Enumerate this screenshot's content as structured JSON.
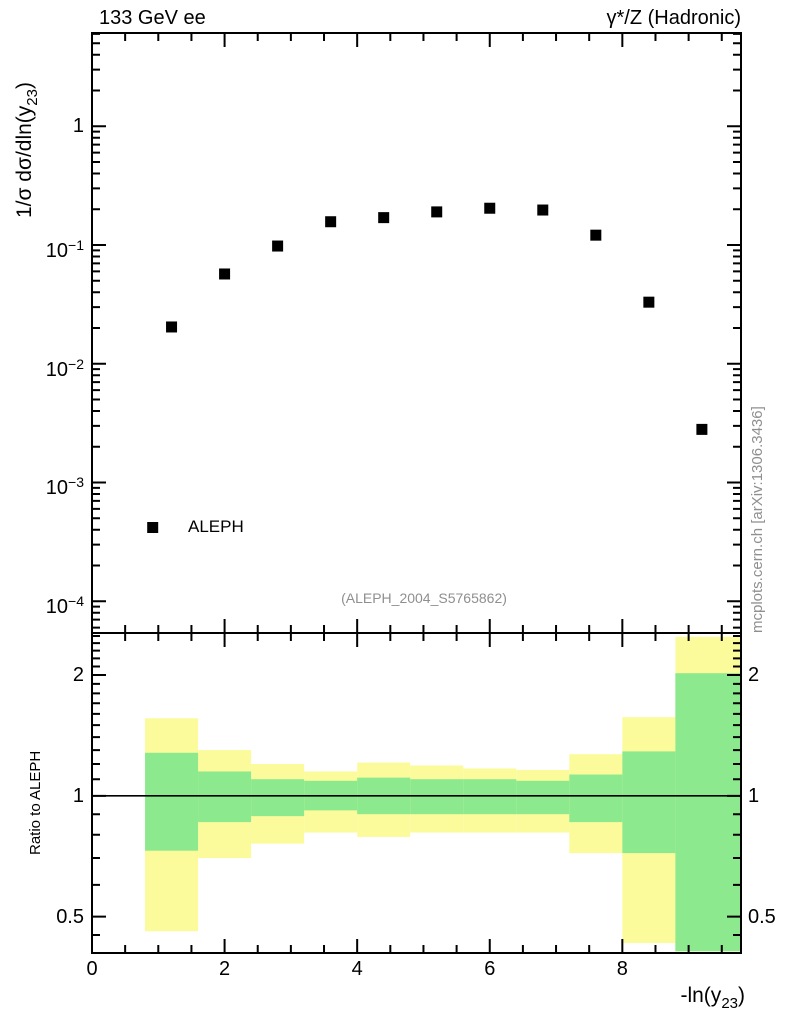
{
  "header": {
    "left_title": "133 GeV ee",
    "right_title": "γ*/Z (Hadronic)"
  },
  "side_note": "mcplots.cern.ch [arXiv:1306.3436]",
  "watermark": "(ALEPH_2004_S5765862)",
  "legend": {
    "label": "ALEPH",
    "marker": "filled-square-icon",
    "marker_color": "#000000"
  },
  "axes": {
    "x_title": {
      "pre": "-ln(y",
      "sub": "23",
      "post": ")"
    },
    "y_title": {
      "pre": "1/σ  dσ/dln(y",
      "sub": "23",
      "post": ")"
    },
    "ratio_title": "Ratio to ALEPH"
  },
  "colors": {
    "frame": "#000000",
    "marker": "#000000",
    "band_yellow": "#FBFB9B",
    "band_green": "#8DE98D",
    "gray_text": "#8f8f8f"
  },
  "chart_data": [
    {
      "type": "scatter",
      "panel": "main",
      "yscale": "log",
      "xlim": [
        0,
        9.79
      ],
      "ylim": [
        5.4e-05,
        6.1
      ],
      "grid": false,
      "x_major_ticks": [
        0,
        2,
        4,
        6,
        8
      ],
      "x_minor_step": 0.5,
      "y_tick_labels": [
        {
          "v": 1,
          "text": "1"
        },
        {
          "v": 0.1,
          "base": "10",
          "exp": "−1"
        },
        {
          "v": 0.01,
          "base": "10",
          "exp": "−2"
        },
        {
          "v": 0.001,
          "base": "10",
          "exp": "−3"
        },
        {
          "v": 0.0001,
          "base": "10",
          "exp": "−4"
        }
      ],
      "series": [
        {
          "name": "ALEPH",
          "marker": "square",
          "color": "#000000",
          "x": [
            1.2,
            2.0,
            2.8,
            3.6,
            4.4,
            5.2,
            6.0,
            6.8,
            7.6,
            8.4,
            9.2
          ],
          "y": [
            0.0204,
            0.057,
            0.098,
            0.157,
            0.17,
            0.19,
            0.204,
            0.197,
            0.121,
            0.033,
            0.0028
          ]
        }
      ]
    },
    {
      "type": "ratio-bands",
      "panel": "ratio",
      "yscale": "log",
      "xlim": [
        0,
        9.79
      ],
      "ylim": [
        0.406,
        2.544
      ],
      "ref_line": 1,
      "x_major_ticks": [
        0,
        2,
        4,
        6,
        8
      ],
      "x_minor_step": 0.5,
      "y_tick_labels": [
        {
          "v": 2,
          "text": "2"
        },
        {
          "v": 1,
          "text": "1"
        },
        {
          "v": 0.5,
          "text": "0.5"
        }
      ],
      "y_minor_ticks": [
        0.45,
        0.6,
        0.7,
        0.8,
        0.9,
        1.1,
        1.2,
        1.3,
        1.4,
        1.5,
        1.6,
        1.7,
        1.8,
        1.9,
        2.1,
        2.2,
        2.3,
        2.4,
        2.5
      ],
      "bin_edges": [
        0.8,
        1.6,
        2.4,
        3.2,
        4.0,
        4.8,
        5.6,
        6.4,
        7.2,
        8.0,
        8.8,
        9.79
      ],
      "bands": {
        "yellow": {
          "color": "#FBFB9B",
          "ranges": [
            [
              0.46,
              1.56
            ],
            [
              0.7,
              1.3
            ],
            [
              0.76,
              1.2
            ],
            [
              0.81,
              1.15
            ],
            [
              0.79,
              1.21
            ],
            [
              0.81,
              1.19
            ],
            [
              0.81,
              1.17
            ],
            [
              0.81,
              1.16
            ],
            [
              0.72,
              1.27
            ],
            [
              0.43,
              1.57
            ],
            [
              0.41,
              2.49
            ]
          ]
        },
        "green": {
          "color": "#8DE98D",
          "ranges": [
            [
              0.73,
              1.28
            ],
            [
              0.86,
              1.15
            ],
            [
              0.89,
              1.1
            ],
            [
              0.92,
              1.09
            ],
            [
              0.9,
              1.11
            ],
            [
              0.9,
              1.1
            ],
            [
              0.9,
              1.1
            ],
            [
              0.9,
              1.09
            ],
            [
              0.86,
              1.13
            ],
            [
              0.72,
              1.29
            ],
            [
              0.41,
              2.02
            ]
          ]
        }
      }
    }
  ]
}
